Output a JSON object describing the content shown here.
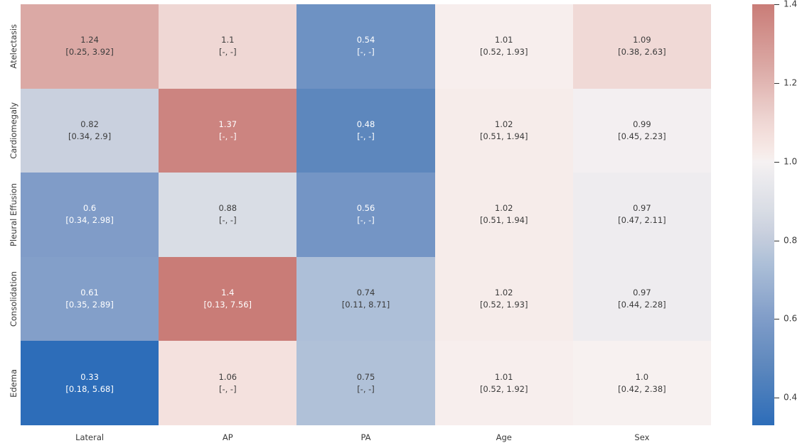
{
  "chart_data": {
    "type": "heatmap",
    "title": "",
    "xlabel": "",
    "ylabel": "",
    "grid": false,
    "rows": [
      "Atelectasis",
      "Cardiomegaly",
      "Pleural Effusion",
      "Consolidation",
      "Edema"
    ],
    "columns": [
      "Lateral",
      "AP",
      "PA",
      "Age",
      "Sex"
    ],
    "annotation_format": "value newline [ci_low, ci_high]",
    "cells": [
      [
        {
          "v": 1.24,
          "label": "1.24",
          "ci": "[0.25, 3.92]"
        },
        {
          "v": 1.1,
          "label": "1.1",
          "ci": "[-, -]"
        },
        {
          "v": 0.54,
          "label": "0.54",
          "ci": "[-, -]"
        },
        {
          "v": 1.01,
          "label": "1.01",
          "ci": "[0.52, 1.93]"
        },
        {
          "v": 1.09,
          "label": "1.09",
          "ci": "[0.38, 2.63]"
        }
      ],
      [
        {
          "v": 0.82,
          "label": "0.82",
          "ci": "[0.34, 2.9]"
        },
        {
          "v": 1.37,
          "label": "1.37",
          "ci": "[-, -]"
        },
        {
          "v": 0.48,
          "label": "0.48",
          "ci": "[-, -]"
        },
        {
          "v": 1.02,
          "label": "1.02",
          "ci": "[0.51, 1.94]"
        },
        {
          "v": 0.99,
          "label": "0.99",
          "ci": "[0.45, 2.23]"
        }
      ],
      [
        {
          "v": 0.6,
          "label": "0.6",
          "ci": "[0.34, 2.98]"
        },
        {
          "v": 0.88,
          "label": "0.88",
          "ci": "[-, -]"
        },
        {
          "v": 0.56,
          "label": "0.56",
          "ci": "[-, -]"
        },
        {
          "v": 1.02,
          "label": "1.02",
          "ci": "[0.51, 1.94]"
        },
        {
          "v": 0.97,
          "label": "0.97",
          "ci": "[0.47, 2.11]"
        }
      ],
      [
        {
          "v": 0.61,
          "label": "0.61",
          "ci": "[0.35, 2.89]"
        },
        {
          "v": 1.4,
          "label": "1.4",
          "ci": "[0.13, 7.56]"
        },
        {
          "v": 0.74,
          "label": "0.74",
          "ci": "[0.11, 8.71]"
        },
        {
          "v": 1.02,
          "label": "1.02",
          "ci": "[0.52, 1.93]"
        },
        {
          "v": 0.97,
          "label": "0.97",
          "ci": "[0.44, 2.28]"
        }
      ],
      [
        {
          "v": 0.33,
          "label": "0.33",
          "ci": "[0.18, 5.68]"
        },
        {
          "v": 1.06,
          "label": "1.06",
          "ci": "[-, -]"
        },
        {
          "v": 0.75,
          "label": "0.75",
          "ci": "[-, -]"
        },
        {
          "v": 1.01,
          "label": "1.01",
          "ci": "[0.52, 1.92]"
        },
        {
          "v": 1.0,
          "label": "1.0",
          "ci": "[0.42, 2.38]"
        }
      ]
    ],
    "colorbar": {
      "position": "right",
      "vmin": 0.33,
      "vmax": 1.4,
      "center": 1.0,
      "tick_values": [
        1.4,
        1.2,
        1.0,
        0.8,
        0.6,
        0.4
      ],
      "tick_labels": [
        "1.4",
        "1.2",
        "1.0",
        "0.8",
        "0.6",
        "0.4"
      ]
    },
    "colors": {
      "background": "#ffffff",
      "text_dark": "#3b3b3b",
      "text_light": "#ffffff",
      "axis_text": "#3a3a3a",
      "blue_stops": [
        [
          0,
          "#f5f1f2"
        ],
        [
          0.18,
          "#d9dde5"
        ],
        [
          0.27,
          "#c9d0de"
        ],
        [
          0.4,
          "#aabdd7"
        ],
        [
          0.6,
          "#7f9cc8"
        ],
        [
          0.78,
          "#5c87bd"
        ],
        [
          1,
          "#2d6db9"
        ]
      ],
      "red_stops": [
        [
          0,
          "#f7f1f0"
        ],
        [
          0.15,
          "#f4e1de"
        ],
        [
          0.25,
          "#efd7d4"
        ],
        [
          0.6,
          "#dba9a5"
        ],
        [
          1,
          "#c97c77"
        ]
      ]
    }
  }
}
